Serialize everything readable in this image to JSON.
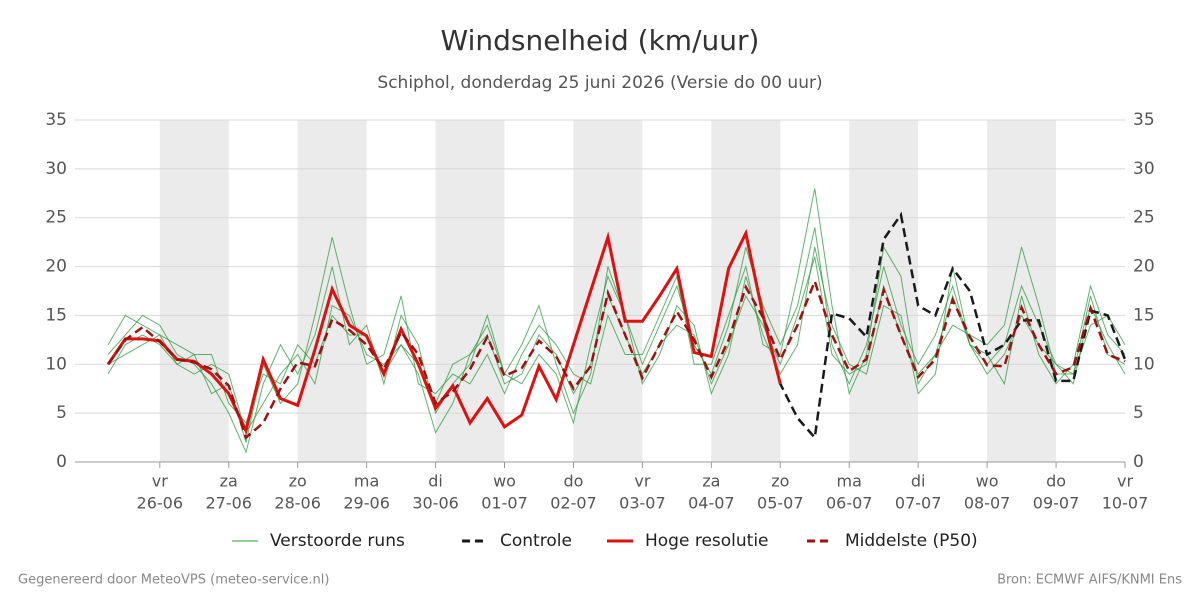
{
  "chart_data": {
    "type": "line",
    "title": "Windsnelheid (km/uur)",
    "subtitle": "Schiphol, donderdag 25 juni 2026 (Versie do 00 uur)",
    "footer_left": "Gegenereerd door MeteoVPS (meteo-service.nl)",
    "footer_right": "Bron: ECMWF AIFS/KNMI Ens",
    "xlim": [
      -1.23,
      14
    ],
    "ylim": [
      0,
      35
    ],
    "yticks": [
      0,
      5,
      10,
      15,
      20,
      25,
      30,
      35
    ],
    "xticks": [
      {
        "value": 0,
        "label": "26-06"
      },
      {
        "value": 1,
        "label": "27-06"
      },
      {
        "value": 2,
        "label": "28-06"
      },
      {
        "value": 3,
        "label": "29-06"
      },
      {
        "value": 4,
        "label": "30-06"
      },
      {
        "value": 5,
        "label": "01-07"
      },
      {
        "value": 6,
        "label": "02-07"
      },
      {
        "value": 7,
        "label": "03-07"
      },
      {
        "value": 8,
        "label": "04-07"
      },
      {
        "value": 9,
        "label": "05-07"
      },
      {
        "value": 10,
        "label": "06-07"
      },
      {
        "value": 11,
        "label": "07-07"
      },
      {
        "value": 12,
        "label": "08-07"
      },
      {
        "value": 13,
        "label": "09-07"
      },
      {
        "value": 14,
        "label": "10-07"
      }
    ],
    "xtick_weekdays": [
      "vr",
      "za",
      "zo",
      "ma",
      "di",
      "wo",
      "do",
      "vr",
      "za",
      "zo",
      "ma",
      "di",
      "wo",
      "do",
      "vr"
    ],
    "grid": true,
    "x": [
      -0.75,
      -0.5,
      -0.25,
      0,
      0.25,
      0.5,
      0.75,
      1,
      1.25,
      1.5,
      1.75,
      2,
      2.25,
      2.5,
      2.75,
      3,
      3.25,
      3.5,
      3.75,
      4,
      4.25,
      4.5,
      4.75,
      5,
      5.25,
      5.5,
      5.75,
      6,
      6.25,
      6.5,
      6.75,
      7,
      7.25,
      7.5,
      7.75,
      8,
      8.25,
      8.5,
      8.75,
      9,
      9.25,
      9.5,
      9.75,
      10,
      10.25,
      10.5,
      10.75,
      11,
      11.25,
      11.5,
      11.75,
      12,
      12.25,
      12.5,
      12.75,
      13,
      13.25,
      13.5,
      13.75,
      14
    ],
    "ensemble": {
      "name": "Verstoorde runs",
      "color": "#2e9a3e",
      "members": [
        [
          11,
          13,
          15,
          14,
          11,
          10,
          8,
          5,
          1,
          8,
          12,
          9,
          13,
          20,
          12,
          14,
          8,
          15,
          12,
          5,
          8,
          10,
          15,
          9,
          12,
          16,
          10,
          5,
          9,
          20,
          15,
          10,
          14,
          18,
          12,
          9,
          14,
          22,
          16,
          12,
          16,
          24,
          12,
          8,
          12,
          20,
          14,
          10,
          13,
          18,
          12,
          10,
          12,
          18,
          14,
          10,
          8,
          16,
          12,
          9
        ],
        [
          9,
          12,
          13,
          12,
          10,
          9,
          10,
          9,
          3,
          6,
          9,
          11,
          8,
          16,
          15,
          11,
          10,
          12,
          9,
          3,
          6,
          11,
          14,
          9,
          8,
          11,
          9,
          4,
          12,
          19,
          15,
          8,
          11,
          16,
          14,
          7,
          11,
          19,
          13,
          9,
          12,
          22,
          14,
          10,
          9,
          16,
          15,
          7,
          9,
          20,
          12,
          11,
          8,
          17,
          11,
          8,
          10,
          18,
          13,
          11
        ],
        [
          12,
          15,
          14,
          13,
          12,
          11,
          7,
          8,
          2,
          10,
          6,
          8,
          15,
          23,
          16,
          10,
          11,
          17,
          8,
          7,
          9,
          8,
          11,
          7,
          11,
          14,
          12,
          9,
          8,
          15,
          11,
          11,
          15,
          19,
          10,
          10,
          15,
          20,
          12,
          11,
          19,
          28,
          16,
          7,
          11,
          22,
          19,
          8,
          11,
          14,
          13,
          12,
          14,
          22,
          16,
          9,
          9,
          14,
          15,
          12
        ],
        [
          10,
          11,
          12,
          13,
          10,
          11,
          11,
          6,
          4,
          9,
          8,
          12,
          10,
          15,
          13,
          13,
          9,
          12,
          10,
          6,
          10,
          11,
          13,
          8,
          9,
          13,
          11,
          7,
          10,
          17,
          13,
          9,
          12,
          14,
          13,
          8,
          12,
          17,
          14,
          10,
          15,
          21,
          11,
          9,
          10,
          18,
          13,
          9,
          11,
          17,
          12,
          9,
          11,
          15,
          12,
          10,
          9,
          17,
          11,
          10
        ]
      ]
    },
    "series": [
      {
        "name": "Controle",
        "color": "#1a1a1a",
        "dash": true,
        "values": [
          10,
          12.6,
          12.6,
          12.4,
          10.5,
          10.3,
          9,
          7,
          3.2,
          10.5,
          6.5,
          5.8,
          11.5,
          17.7,
          14,
          12.9,
          9,
          13.6,
          10,
          5.5,
          7.8,
          4,
          6.5,
          3.6,
          4.8,
          9.8,
          6.4,
          12,
          17.5,
          23,
          14.4,
          14.4,
          17,
          19.8,
          11.2,
          10.8,
          19.8,
          23.4,
          15,
          8,
          4.5,
          2.5,
          15.2,
          14.7,
          12.8,
          22.8,
          25.3,
          16,
          15,
          19.8,
          17.5,
          11,
          12,
          14.5,
          14.5,
          8.3,
          8.3,
          15.5,
          15,
          10.5
        ]
      },
      {
        "name": "Hoge resolutie",
        "color": "#e01010",
        "dash": false,
        "values": [
          10,
          12.6,
          12.6,
          12.4,
          10.5,
          10.3,
          9,
          7,
          3.2,
          10.5,
          6.5,
          5.8,
          11.5,
          17.7,
          14,
          12.9,
          9,
          13.6,
          10,
          5.5,
          7.8,
          4,
          6.5,
          3.6,
          4.8,
          9.8,
          6.4,
          12,
          17.5,
          23,
          14.4,
          14.4,
          17,
          19.8,
          11.2,
          10.8,
          19.8,
          23.4,
          15,
          8,
          null,
          null,
          null,
          null,
          null,
          null,
          null,
          null,
          null,
          null,
          null,
          null,
          null,
          null,
          null,
          null,
          null,
          null,
          null,
          null
        ]
      },
      {
        "name": "Middelste (P50)",
        "color": "#a01010",
        "dash": true,
        "values": [
          10,
          12.5,
          13.8,
          12.3,
          10.5,
          10.2,
          9.5,
          7.8,
          2.5,
          4,
          7.5,
          10.2,
          9.8,
          14.6,
          13.5,
          12,
          9.5,
          13.3,
          11,
          6,
          7.2,
          9.5,
          12.8,
          8.8,
          9.6,
          12.4,
          10.8,
          7.5,
          9.8,
          17.3,
          13,
          8.6,
          12,
          15.4,
          12.5,
          8.7,
          12.5,
          17.9,
          14.8,
          10.5,
          14,
          18.5,
          13,
          9.3,
          10.5,
          17.6,
          13,
          8.7,
          10.5,
          16.6,
          12.8,
          9.9,
          9.8,
          15.8,
          12,
          9,
          9.7,
          15.7,
          11,
          10.3
        ]
      }
    ]
  }
}
